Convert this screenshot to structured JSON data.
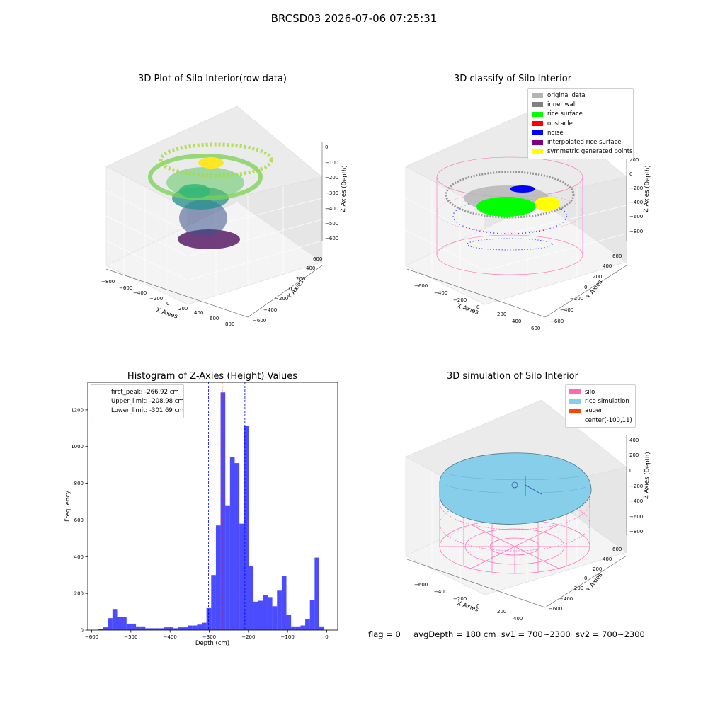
{
  "figure": {
    "suptitle": "BRCSD03 2026-07-06 07:25:31"
  },
  "panels": {
    "raw": {
      "title": "3D Plot of Silo Interior(row data)",
      "x_label": "X Axies",
      "y_label": "Y Axies",
      "z_label": "Z Axies (Depth)",
      "x_ticks": [
        "−800",
        "−600",
        "−400",
        "−200",
        "0",
        "200",
        "400",
        "600",
        "800"
      ],
      "y_ticks": [
        "−600",
        "−400",
        "−200",
        "0",
        "200",
        "400",
        "600"
      ],
      "z_ticks": [
        "0",
        "−100",
        "−200",
        "−300",
        "−400",
        "−500",
        "−600"
      ],
      "colormap": "viridis"
    },
    "classify": {
      "title": "3D classify of Silo Interior",
      "x_label": "X Axies",
      "y_label": "Y Axies",
      "z_label": "Z Axies (Depth)",
      "x_ticks": [
        "−600",
        "−400",
        "−200",
        "0",
        "200",
        "400",
        "600"
      ],
      "y_ticks": [
        "−600",
        "−400",
        "−200",
        "0",
        "200",
        "400",
        "600"
      ],
      "z_ticks": [
        "200",
        "0",
        "−200",
        "−400",
        "−600",
        "−800"
      ],
      "legend": [
        {
          "label": "original data",
          "color": "#b4b4b4"
        },
        {
          "label": "inner wall",
          "color": "#808080"
        },
        {
          "label": "rice surface",
          "color": "#00ff00"
        },
        {
          "label": "obstacle",
          "color": "#ff0000"
        },
        {
          "label": "noise",
          "color": "#0000ff"
        },
        {
          "label": "interpolated rice surface",
          "color": "#800080"
        },
        {
          "label": "symmetric generated points",
          "color": "#ffff00"
        }
      ]
    },
    "simulation": {
      "title": "3D simulation of Silo Interior",
      "x_label": "X Axies",
      "y_label": "Y Axies",
      "z_label": "Z Axies (Depth)",
      "x_ticks": [
        "−600",
        "−400",
        "−200",
        "0",
        "200",
        "400"
      ],
      "y_ticks": [
        "−600",
        "−400",
        "−200",
        "0",
        "200",
        "400",
        "600"
      ],
      "z_ticks": [
        "400",
        "200",
        "0",
        "−200",
        "−400",
        "−600",
        "−800"
      ],
      "legend": [
        {
          "label": "silo",
          "color": "#ff69b4"
        },
        {
          "label": "rice simulation",
          "color": "#87ceeb"
        },
        {
          "label": "auger",
          "color": "#ff4500"
        },
        {
          "label": "center(-100,11)",
          "color": ""
        }
      ]
    }
  },
  "chart_data": [
    {
      "type": "bar",
      "title": "Histogram of Z-Axies (Height) Values",
      "xlabel": "Depth (cm)",
      "ylabel": "Frequency",
      "xlim": [
        -610,
        28
      ],
      "ylim": [
        0,
        1350
      ],
      "x_ticks": [
        -600,
        -500,
        -400,
        -300,
        -200,
        -100,
        0
      ],
      "x_tick_labels": [
        "−600",
        "−500",
        "−400",
        "−300",
        "−200",
        "−100",
        "0"
      ],
      "y_ticks": [
        0,
        200,
        400,
        600,
        800,
        1000,
        1200
      ],
      "y_tick_labels": [
        "0",
        "200",
        "400",
        "600",
        "800",
        "1000",
        "1200"
      ],
      "bar_color": "#0000ff",
      "bin_width": 12,
      "bin_starts": [
        -583,
        -571,
        -559,
        -547,
        -535,
        -523,
        -511,
        -499,
        -487,
        -475,
        -463,
        -451,
        -439,
        -427,
        -415,
        -403,
        -391,
        -379,
        -367,
        -355,
        -343,
        -331,
        -319,
        -307,
        -295,
        -283,
        -271,
        -259,
        -247,
        -235,
        -223,
        -211,
        -199,
        -187,
        -175,
        -163,
        -151,
        -139,
        -127,
        -115,
        -103,
        -91,
        -79,
        -67,
        -55,
        -43,
        -31,
        -19
      ],
      "values": [
        5,
        15,
        65,
        115,
        70,
        70,
        35,
        35,
        20,
        20,
        10,
        10,
        10,
        10,
        15,
        15,
        10,
        15,
        15,
        25,
        25,
        30,
        40,
        120,
        300,
        570,
        1295,
        680,
        945,
        910,
        580,
        1115,
        350,
        155,
        160,
        190,
        180,
        130,
        215,
        295,
        85,
        20,
        20,
        25,
        60,
        165,
        395,
        20
      ],
      "reference_lines": [
        {
          "name": "first_peak",
          "label": "first_peak: -266.92 cm",
          "x": -266.92,
          "color": "#ff0000"
        },
        {
          "name": "upper_limit",
          "label": "Upper_limit: -208.98 cm",
          "x": -208.98,
          "color": "#0000ff"
        },
        {
          "name": "lower_limit",
          "label": "Lower_limit: -301.69 cm",
          "x": -301.69,
          "color": "#0000ff"
        }
      ],
      "legend_position": "upper left"
    }
  ],
  "status": {
    "flag": "flag = 0",
    "avg_depth": "avgDepth = 180 cm",
    "sv1": "sv1 = 700~2300",
    "sv2": "sv2 = 700~2300"
  }
}
